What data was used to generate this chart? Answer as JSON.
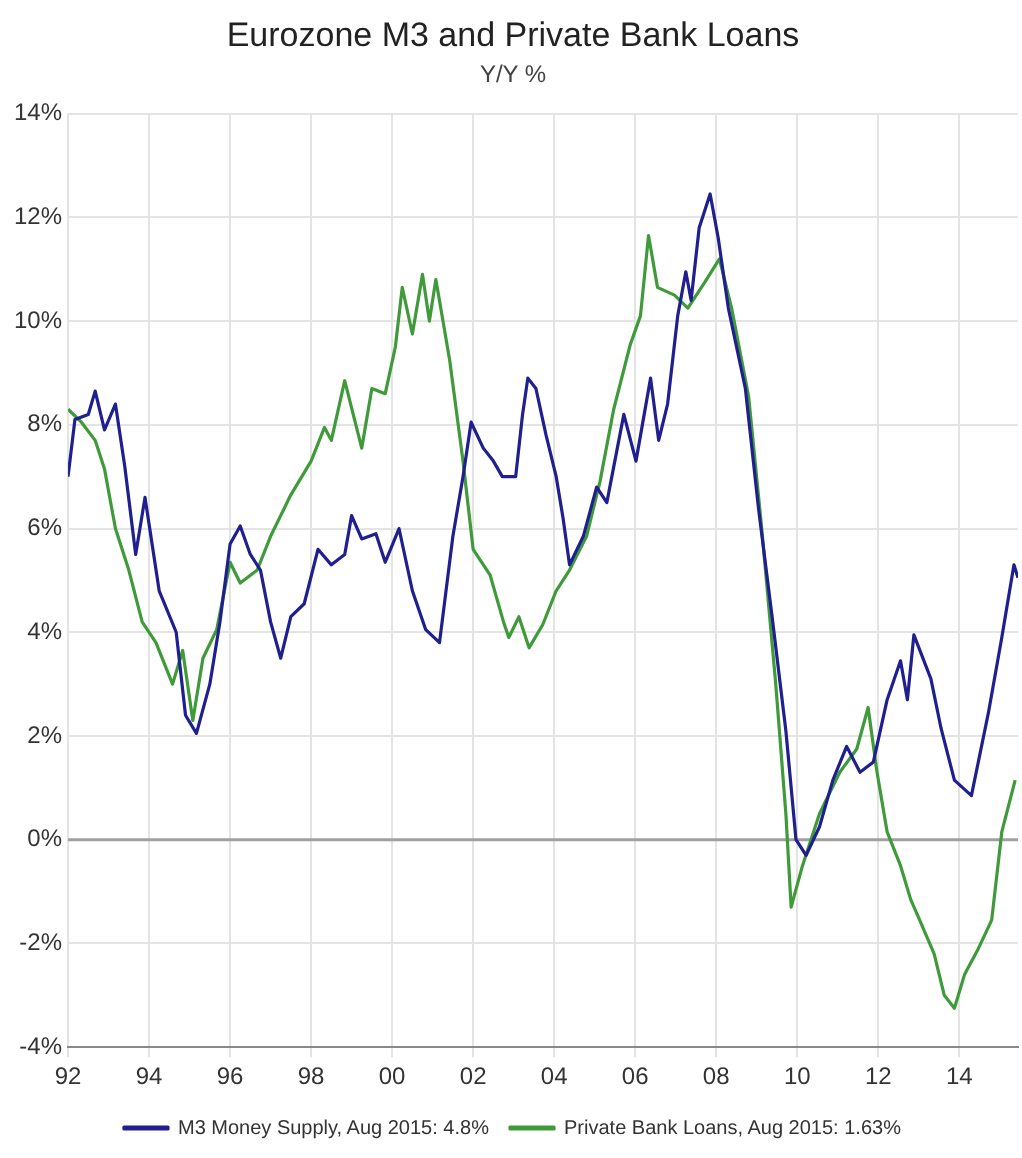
{
  "chart_data": {
    "type": "line",
    "title": "Eurozone M3 and Private Bank Loans",
    "subtitle": "Y/Y %",
    "xlim": [
      1992,
      2015.45
    ],
    "xticks": [
      {
        "value": 1992,
        "label": "92"
      },
      {
        "value": 1994,
        "label": "94"
      },
      {
        "value": 1996,
        "label": "96"
      },
      {
        "value": 1998,
        "label": "98"
      },
      {
        "value": 2000,
        "label": "00"
      },
      {
        "value": 2002,
        "label": "02"
      },
      {
        "value": 2004,
        "label": "04"
      },
      {
        "value": 2006,
        "label": "06"
      },
      {
        "value": 2008,
        "label": "08"
      },
      {
        "value": 2010,
        "label": "10"
      },
      {
        "value": 2012,
        "label": "12"
      },
      {
        "value": 2014,
        "label": "14"
      }
    ],
    "ylim": [
      -4,
      14
    ],
    "yticks": [
      {
        "value": -4,
        "label": "-4%"
      },
      {
        "value": -2,
        "label": "-2%"
      },
      {
        "value": 0,
        "label": "0%"
      },
      {
        "value": 2,
        "label": "2%"
      },
      {
        "value": 4,
        "label": "4%"
      },
      {
        "value": 6,
        "label": "6%"
      },
      {
        "value": 8,
        "label": "8%"
      },
      {
        "value": 10,
        "label": "10%"
      },
      {
        "value": 12,
        "label": "12%"
      },
      {
        "value": 14,
        "label": "14%"
      }
    ],
    "grid": true,
    "legend": "bottom",
    "marker": "none",
    "line_style": "solid",
    "ref_lines": [
      {
        "axis": "y",
        "value": 0,
        "color": "#a0a0a0"
      }
    ],
    "series": [
      {
        "name": "M3 Money Supply, Aug 2015: 4.8%",
        "color": "#1f1f8f",
        "x": [
          1992.0,
          1992.17,
          1992.5,
          1992.67,
          1992.9,
          1993.17,
          1993.4,
          1993.67,
          1993.9,
          1994.25,
          1994.67,
          1994.9,
          1995.17,
          1995.5,
          1995.75,
          1996.0,
          1996.25,
          1996.5,
          1996.75,
          1997.0,
          1997.25,
          1997.5,
          1997.83,
          1998.17,
          1998.5,
          1998.83,
          1999.0,
          1999.25,
          1999.6,
          1999.83,
          2000.17,
          2000.5,
          2000.83,
          2001.17,
          2001.5,
          2001.75,
          2001.95,
          2002.25,
          2002.5,
          2002.72,
          2003.05,
          2003.22,
          2003.35,
          2003.55,
          2003.8,
          2004.05,
          2004.22,
          2004.38,
          2004.72,
          2005.05,
          2005.3,
          2005.72,
          2006.02,
          2006.38,
          2006.58,
          2006.8,
          2007.05,
          2007.25,
          2007.38,
          2007.58,
          2007.85,
          2008.05,
          2008.3,
          2008.72,
          2009.05,
          2009.38,
          2009.72,
          2009.97,
          2010.22,
          2010.55,
          2010.88,
          2011.22,
          2011.55,
          2011.88,
          2012.22,
          2012.55,
          2012.72,
          2012.88,
          2013.3,
          2013.55,
          2013.88,
          2014.3,
          2014.72,
          2015.05,
          2015.35,
          2015.45
        ],
        "values": [
          7.0,
          8.1,
          8.2,
          8.65,
          7.9,
          8.4,
          7.2,
          5.5,
          6.6,
          4.8,
          4.0,
          2.4,
          2.05,
          3.0,
          4.2,
          5.7,
          6.05,
          5.5,
          5.2,
          4.2,
          3.5,
          4.3,
          4.55,
          5.6,
          5.3,
          5.5,
          6.25,
          5.8,
          5.9,
          5.35,
          6.0,
          4.8,
          4.05,
          3.8,
          5.85,
          7.0,
          8.05,
          7.55,
          7.3,
          7.0,
          7.0,
          8.2,
          8.9,
          8.7,
          7.8,
          7.0,
          6.2,
          5.3,
          5.85,
          6.8,
          6.5,
          8.2,
          7.3,
          8.9,
          7.7,
          8.4,
          10.1,
          10.95,
          10.4,
          11.8,
          12.45,
          11.6,
          10.25,
          8.7,
          6.35,
          4.3,
          2.1,
          0.0,
          -0.3,
          0.25,
          1.15,
          1.8,
          1.3,
          1.5,
          2.7,
          3.45,
          2.7,
          3.95,
          3.1,
          2.15,
          1.15,
          0.85,
          2.45,
          3.9,
          5.3,
          5.05
        ]
      },
      {
        "name": "Private Bank Loans, Aug 2015: 1.63%",
        "color": "#3f9a3a",
        "x": [
          1992.0,
          1992.33,
          1992.67,
          1992.9,
          1993.17,
          1993.5,
          1993.83,
          1994.17,
          1994.58,
          1994.83,
          1995.08,
          1995.33,
          1995.67,
          1996.0,
          1996.25,
          1996.67,
          1997.0,
          1997.5,
          1998.0,
          1998.33,
          1998.5,
          1998.83,
          1999.25,
          1999.5,
          1999.83,
          2000.08,
          2000.25,
          2000.5,
          2000.75,
          2000.92,
          2001.08,
          2001.42,
          2001.75,
          2002.0,
          2002.42,
          2002.75,
          2002.88,
          2003.13,
          2003.38,
          2003.72,
          2004.05,
          2004.38,
          2004.8,
          2005.13,
          2005.47,
          2005.88,
          2006.13,
          2006.33,
          2006.55,
          2006.97,
          2007.3,
          2007.72,
          2008.08,
          2008.38,
          2008.8,
          2009.13,
          2009.47,
          2009.72,
          2009.85,
          2010.13,
          2010.55,
          2011.05,
          2011.47,
          2011.75,
          2011.97,
          2012.22,
          2012.55,
          2012.8,
          2013.05,
          2013.38,
          2013.63,
          2013.88,
          2014.13,
          2014.47,
          2014.8,
          2015.05,
          2015.38
        ],
        "values": [
          8.3,
          8.05,
          7.7,
          7.15,
          6.0,
          5.2,
          4.2,
          3.8,
          3.0,
          3.65,
          2.3,
          3.5,
          4.05,
          5.35,
          4.95,
          5.2,
          5.85,
          6.65,
          7.3,
          7.95,
          7.7,
          8.85,
          7.55,
          8.7,
          8.6,
          9.5,
          10.65,
          9.75,
          10.9,
          10.0,
          10.8,
          9.25,
          7.3,
          5.6,
          5.1,
          4.2,
          3.9,
          4.3,
          3.7,
          4.15,
          4.8,
          5.2,
          5.85,
          6.9,
          8.3,
          9.55,
          10.1,
          11.65,
          10.65,
          10.5,
          10.25,
          10.75,
          11.2,
          10.25,
          8.55,
          5.95,
          3.0,
          0.5,
          -1.3,
          -0.5,
          0.5,
          1.3,
          1.75,
          2.55,
          1.3,
          0.15,
          -0.5,
          -1.15,
          -1.6,
          -2.2,
          -3.0,
          -3.25,
          -2.6,
          -2.1,
          -1.55,
          0.15,
          1.15
        ]
      }
    ]
  }
}
